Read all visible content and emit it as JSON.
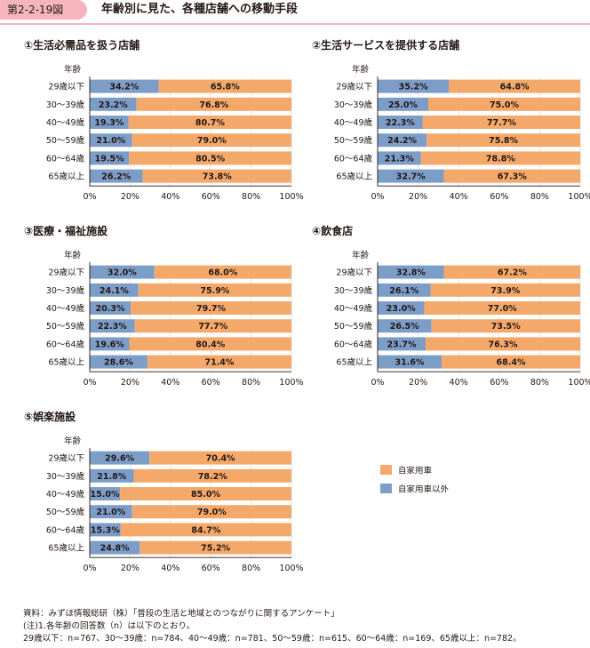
{
  "header": {
    "figure_number": "第2-2-19図",
    "title": "年齢別に見た、各種店舗への移動手段"
  },
  "chart_data": [
    {
      "type": "bar",
      "stacked": true,
      "orientation": "horizontal",
      "title": "①生活必需品を扱う店舗",
      "ylabel": "年齢",
      "categories": [
        "29歳以下",
        "30～39歳",
        "40～49歳",
        "50～59歳",
        "60～64歳",
        "65歳以上"
      ],
      "series": [
        {
          "name": "自家用車以外",
          "values": [
            34.2,
            23.2,
            19.3,
            21.0,
            19.5,
            26.2
          ],
          "labels": [
            "34.2%",
            "23.2%",
            "19.3%",
            "21.0%",
            "19.5%",
            "26.2%"
          ]
        },
        {
          "name": "自家用車",
          "values": [
            65.8,
            76.8,
            80.7,
            79.0,
            80.5,
            73.8
          ],
          "labels": [
            "65.8%",
            "76.8%",
            "80.7%",
            "79.0%",
            "80.5%",
            "73.8%"
          ]
        }
      ],
      "xticks": [
        "0%",
        "20%",
        "40%",
        "60%",
        "80%",
        "100%"
      ],
      "xlim": [
        0,
        100
      ]
    },
    {
      "type": "bar",
      "stacked": true,
      "orientation": "horizontal",
      "title": "②生活サービスを提供する店舗",
      "ylabel": "年齢",
      "categories": [
        "29歳以下",
        "30～39歳",
        "40～49歳",
        "50～59歳",
        "60～64歳",
        "65歳以上"
      ],
      "series": [
        {
          "name": "自家用車以外",
          "values": [
            35.2,
            25.0,
            22.3,
            24.2,
            21.3,
            32.7
          ],
          "labels": [
            "35.2%",
            "25.0%",
            "22.3%",
            "24.2%",
            "21.3%",
            "32.7%"
          ]
        },
        {
          "name": "自家用車",
          "values": [
            64.8,
            75.0,
            77.7,
            75.8,
            78.8,
            67.3
          ],
          "labels": [
            "64.8%",
            "75.0%",
            "77.7%",
            "75.8%",
            "78.8%",
            "67.3%"
          ]
        }
      ],
      "xticks": [
        "0%",
        "20%",
        "40%",
        "60%",
        "80%",
        "100%"
      ],
      "xlim": [
        0,
        100
      ]
    },
    {
      "type": "bar",
      "stacked": true,
      "orientation": "horizontal",
      "title": "③医療・福祉施設",
      "ylabel": "年齢",
      "categories": [
        "29歳以下",
        "30～39歳",
        "40～49歳",
        "50～59歳",
        "60～64歳",
        "65歳以上"
      ],
      "series": [
        {
          "name": "自家用車以外",
          "values": [
            32.0,
            24.1,
            20.3,
            22.3,
            19.6,
            28.6
          ],
          "labels": [
            "32.0%",
            "24.1%",
            "20.3%",
            "22.3%",
            "19.6%",
            "28.6%"
          ]
        },
        {
          "name": "自家用車",
          "values": [
            68.0,
            75.9,
            79.7,
            77.7,
            80.4,
            71.4
          ],
          "labels": [
            "68.0%",
            "75.9%",
            "79.7%",
            "77.7%",
            "80.4%",
            "71.4%"
          ]
        }
      ],
      "xticks": [
        "0%",
        "20%",
        "40%",
        "60%",
        "80%",
        "100%"
      ],
      "xlim": [
        0,
        100
      ]
    },
    {
      "type": "bar",
      "stacked": true,
      "orientation": "horizontal",
      "title": "④飲食店",
      "ylabel": "年齢",
      "categories": [
        "29歳以下",
        "30～39歳",
        "40～49歳",
        "50～59歳",
        "60～64歳",
        "65歳以上"
      ],
      "series": [
        {
          "name": "自家用車以外",
          "values": [
            32.8,
            26.1,
            23.0,
            26.5,
            23.7,
            31.6
          ],
          "labels": [
            "32.8%",
            "26.1%",
            "23.0%",
            "26.5%",
            "23.7%",
            "31.6%"
          ]
        },
        {
          "name": "自家用車",
          "values": [
            67.2,
            73.9,
            77.0,
            73.5,
            76.3,
            68.4
          ],
          "labels": [
            "67.2%",
            "73.9%",
            "77.0%",
            "73.5%",
            "76.3%",
            "68.4%"
          ]
        }
      ],
      "xticks": [
        "0%",
        "20%",
        "40%",
        "60%",
        "80%",
        "100%"
      ],
      "xlim": [
        0,
        100
      ]
    },
    {
      "type": "bar",
      "stacked": true,
      "orientation": "horizontal",
      "title": "⑤娯楽施設",
      "ylabel": "年齢",
      "categories": [
        "29歳以下",
        "30～39歳",
        "40～49歳",
        "50～59歳",
        "60～64歳",
        "65歳以上"
      ],
      "series": [
        {
          "name": "自家用車以外",
          "values": [
            29.6,
            21.8,
            15.0,
            21.0,
            15.3,
            24.8
          ],
          "labels": [
            "29.6%",
            "21.8%",
            "15.0%",
            "21.0%",
            "15.3%",
            "24.8%"
          ]
        },
        {
          "name": "自家用車",
          "values": [
            70.4,
            78.2,
            85.0,
            79.0,
            84.7,
            75.2
          ],
          "labels": [
            "70.4%",
            "78.2%",
            "85.0%",
            "79.0%",
            "84.7%",
            "75.2%"
          ]
        }
      ],
      "xticks": [
        "0%",
        "20%",
        "40%",
        "60%",
        "80%",
        "100%"
      ],
      "xlim": [
        0,
        100
      ]
    }
  ],
  "legend": {
    "items": [
      {
        "label": "自家用車",
        "color": "#f4a96a"
      },
      {
        "label": "自家用車以外",
        "color": "#7d9dc9"
      }
    ]
  },
  "colors": {
    "car": "#f4a96a",
    "non_car": "#7d9dc9"
  },
  "footer": {
    "source": "資料：みずほ情報総研（株）「普段の生活と地域とのつながりに関するアンケート」",
    "note": "(注)1.各年齢の回答数（n）は以下のとおり。",
    "counts": "29歳以下：n=767、30～39歳：n=784、40～49歳：n=781、50～59歳：n=615、60～64歳：n=169、65歳以上：n=782。"
  }
}
